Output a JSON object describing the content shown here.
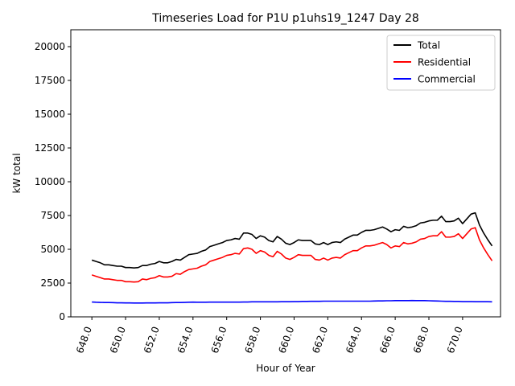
{
  "chart_data": {
    "type": "line",
    "title": "Timeseries Load for P1U p1uhs19_1247  Day 28",
    "xlabel": "Hour of Year",
    "ylabel": "kW total",
    "xlim": [
      646.75,
      672.25
    ],
    "ylim": [
      0,
      21250
    ],
    "xticks": [
      648,
      650,
      652,
      654,
      656,
      658,
      660,
      662,
      664,
      666,
      668,
      670
    ],
    "xtick_labels": [
      "648.0",
      "650.0",
      "652.0",
      "654.0",
      "656.0",
      "658.0",
      "660.0",
      "662.0",
      "664.0",
      "666.0",
      "668.0",
      "670.0"
    ],
    "yticks": [
      0,
      2500,
      5000,
      7500,
      10000,
      12500,
      15000,
      17500,
      20000
    ],
    "ytick_labels": [
      "0",
      "2500",
      "5000",
      "7500",
      "10000",
      "12500",
      "15000",
      "17500",
      "20000"
    ],
    "x": [
      648.0,
      648.25,
      648.5,
      648.75,
      649.0,
      649.25,
      649.5,
      649.75,
      650.0,
      650.25,
      650.5,
      650.75,
      651.0,
      651.25,
      651.5,
      651.75,
      652.0,
      652.25,
      652.5,
      652.75,
      653.0,
      653.25,
      653.5,
      653.75,
      654.0,
      654.25,
      654.5,
      654.75,
      655.0,
      655.25,
      655.5,
      655.75,
      656.0,
      656.25,
      656.5,
      656.75,
      657.0,
      657.25,
      657.5,
      657.75,
      658.0,
      658.25,
      658.5,
      658.75,
      659.0,
      659.25,
      659.5,
      659.75,
      660.0,
      660.25,
      660.5,
      660.75,
      661.0,
      661.25,
      661.5,
      661.75,
      662.0,
      662.25,
      662.5,
      662.75,
      663.0,
      663.25,
      663.5,
      663.75,
      664.0,
      664.25,
      664.5,
      664.75,
      665.0,
      665.25,
      665.5,
      665.75,
      666.0,
      666.25,
      666.5,
      666.75,
      667.0,
      667.25,
      667.5,
      667.75,
      668.0,
      668.25,
      668.5,
      668.75,
      669.0,
      669.25,
      669.5,
      669.75,
      670.0,
      670.25,
      670.5,
      670.75,
      671.0,
      671.25,
      671.5,
      671.75
    ],
    "series": [
      {
        "name": "Total",
        "color": "#000000",
        "values": [
          4200,
          4100,
          4000,
          3850,
          3850,
          3800,
          3750,
          3750,
          3650,
          3650,
          3620,
          3650,
          3800,
          3800,
          3900,
          3950,
          4100,
          4000,
          4000,
          4100,
          4250,
          4200,
          4400,
          4600,
          4650,
          4700,
          4850,
          4950,
          5200,
          5300,
          5400,
          5500,
          5650,
          5700,
          5800,
          5750,
          6200,
          6200,
          6100,
          5800,
          6000,
          5900,
          5650,
          5550,
          5950,
          5750,
          5450,
          5350,
          5500,
          5700,
          5650,
          5650,
          5650,
          5400,
          5350,
          5500,
          5350,
          5500,
          5550,
          5500,
          5750,
          5900,
          6050,
          6050,
          6250,
          6400,
          6400,
          6450,
          6550,
          6650,
          6500,
          6300,
          6450,
          6400,
          6700,
          6600,
          6650,
          6750,
          6950,
          7000,
          7100,
          7150,
          7150,
          7450,
          7050,
          7050,
          7100,
          7300,
          6900,
          7250,
          7600,
          7700,
          6800,
          6200,
          5700,
          5250
        ]
      },
      {
        "name": "Residential",
        "color": "#ff0000",
        "values": [
          3100,
          3000,
          2900,
          2800,
          2800,
          2750,
          2700,
          2700,
          2600,
          2600,
          2580,
          2600,
          2800,
          2750,
          2850,
          2900,
          3050,
          2950,
          2950,
          3000,
          3200,
          3150,
          3350,
          3500,
          3550,
          3600,
          3750,
          3850,
          4100,
          4200,
          4300,
          4400,
          4550,
          4600,
          4700,
          4650,
          5050,
          5100,
          5000,
          4700,
          4900,
          4800,
          4550,
          4450,
          4850,
          4650,
          4350,
          4250,
          4400,
          4600,
          4550,
          4550,
          4550,
          4250,
          4200,
          4350,
          4200,
          4350,
          4400,
          4350,
          4600,
          4750,
          4900,
          4900,
          5100,
          5250,
          5250,
          5300,
          5400,
          5500,
          5350,
          5100,
          5250,
          5200,
          5500,
          5400,
          5450,
          5550,
          5750,
          5800,
          5950,
          6000,
          6000,
          6300,
          5900,
          5900,
          5950,
          6150,
          5800,
          6150,
          6500,
          6600,
          5700,
          5100,
          4600,
          4150
        ]
      },
      {
        "name": "Commercial",
        "color": "#0000ff",
        "values": [
          1100,
          1080,
          1070,
          1060,
          1060,
          1050,
          1040,
          1040,
          1030,
          1030,
          1020,
          1020,
          1020,
          1030,
          1030,
          1030,
          1040,
          1040,
          1040,
          1050,
          1060,
          1060,
          1070,
          1080,
          1090,
          1080,
          1080,
          1080,
          1090,
          1090,
          1090,
          1090,
          1090,
          1090,
          1090,
          1090,
          1100,
          1100,
          1110,
          1110,
          1110,
          1110,
          1110,
          1110,
          1110,
          1120,
          1120,
          1120,
          1130,
          1130,
          1140,
          1140,
          1150,
          1150,
          1150,
          1160,
          1160,
          1160,
          1160,
          1160,
          1160,
          1160,
          1160,
          1160,
          1160,
          1160,
          1160,
          1170,
          1180,
          1180,
          1190,
          1190,
          1200,
          1200,
          1200,
          1200,
          1210,
          1200,
          1200,
          1200,
          1190,
          1180,
          1170,
          1160,
          1150,
          1150,
          1140,
          1140,
          1130,
          1130,
          1130,
          1120,
          1120,
          1120,
          1120,
          1110
        ]
      }
    ],
    "legend_position": "top-right",
    "grid": false
  }
}
